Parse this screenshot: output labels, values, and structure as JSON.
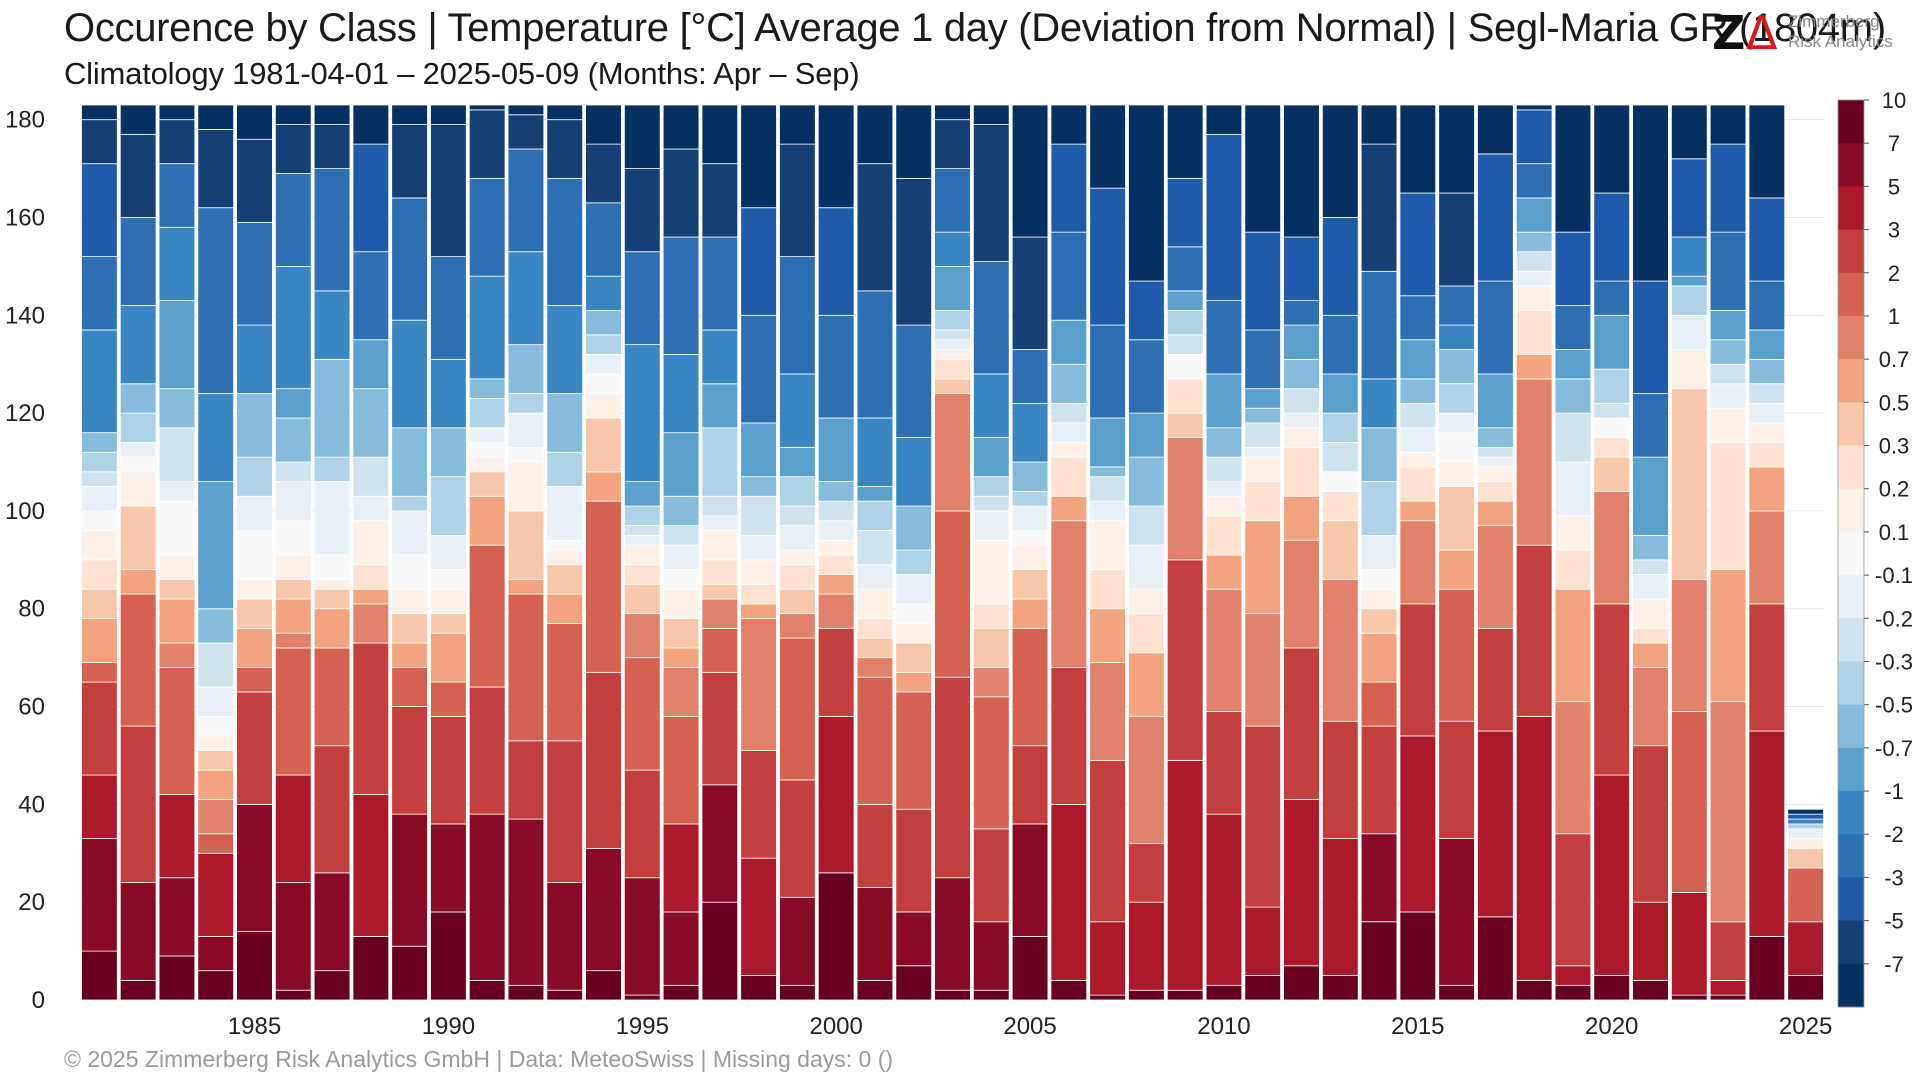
{
  "header": {
    "title": "Occurence by Class | Temperature [°C] Average 1 day (Deviation from Normal) | Segl-Maria  GR (1804m)",
    "subtitle": "Climatology 1981-04-01 – 2025-05-09 (Months: Apr – Sep)"
  },
  "logo": {
    "mark": "Z",
    "line1": "Zimmerberg",
    "line2": "Risk Analytics"
  },
  "footer": {
    "text": "©  2025 Zimmerberg Risk Analytics GmbH | Data: MeteoSwiss | Missing days: 0 ()"
  },
  "colors": {
    "classes": [
      "#053061",
      "#163f75",
      "#1f5ba8",
      "#2c6fb3",
      "#3a86c0",
      "#5aa0cd",
      "#86bcdb",
      "#aed2e6",
      "#cfe3ef",
      "#e7f0f6",
      "#f8f8f8",
      "#fdf0e8",
      "#fde2d2",
      "#f8c6a8",
      "#f1a47e",
      "#e2816a",
      "#d36350",
      "#c33f3d",
      "#aa1a2c",
      "#870a26",
      "#67001f"
    ],
    "grid": "#e6e6e6",
    "separator": "#ffffff"
  },
  "chart_data": {
    "type": "bar",
    "stacked": true,
    "ylim": [
      0,
      183
    ],
    "yticks": [
      0,
      20,
      40,
      60,
      80,
      100,
      120,
      140,
      160,
      180
    ],
    "xticks": [
      1985,
      1990,
      1995,
      2000,
      2005,
      2010,
      2015,
      2020,
      2025
    ],
    "grid": true,
    "legend": "colorbar-right",
    "class_labels": [
      "-7",
      "-5",
      "-3",
      "-2",
      "-1",
      "-0.7",
      "-0.5",
      "-0.3",
      "-0.2",
      "-0.1",
      "0.1",
      "0.2",
      "0.3",
      "0.5",
      "0.7",
      "1",
      "2",
      "3",
      "5",
      "7",
      "10"
    ],
    "class_order": "warmest class at bottom of each bar, coldest at top",
    "years": [
      1981,
      1982,
      1983,
      1984,
      1985,
      1986,
      1987,
      1988,
      1989,
      1990,
      1991,
      1992,
      1993,
      1994,
      1995,
      1996,
      1997,
      1998,
      1999,
      2000,
      2001,
      2002,
      2003,
      2004,
      2005,
      2006,
      2007,
      2008,
      2009,
      2010,
      2011,
      2012,
      2013,
      2014,
      2015,
      2016,
      2017,
      2018,
      2019,
      2020,
      2021,
      2022,
      2023,
      2024,
      2025
    ],
    "boundaries": [
      [
        10,
        33,
        46,
        65,
        69,
        78,
        84,
        90,
        96,
        100,
        105,
        108,
        112,
        116,
        137,
        152,
        171,
        180,
        183
      ],
      [
        4,
        24,
        56,
        83,
        88,
        101,
        108,
        111,
        114,
        120,
        126,
        142,
        160,
        177,
        183
      ],
      [
        9,
        25,
        42,
        68,
        73,
        82,
        86,
        91,
        102,
        106,
        117,
        125,
        143,
        158,
        171,
        180,
        183
      ],
      [
        6,
        13,
        30,
        34,
        41,
        47,
        51,
        54,
        58,
        64,
        73,
        80,
        106,
        124,
        162,
        178,
        183
      ],
      [
        14,
        40,
        63,
        68,
        76,
        82,
        86,
        96,
        103,
        111,
        124,
        138,
        159,
        176,
        183
      ],
      [
        2,
        24,
        46,
        72,
        75,
        82,
        86,
        91,
        98,
        106,
        110,
        119,
        125,
        150,
        169,
        179,
        183
      ],
      [
        6,
        26,
        52,
        72,
        80,
        84,
        86,
        91,
        106,
        111,
        131,
        145,
        170,
        179,
        183
      ],
      [
        13,
        42,
        73,
        81,
        84,
        89,
        98,
        103,
        111,
        125,
        135,
        153,
        175,
        183
      ],
      [
        11,
        38,
        60,
        68,
        73,
        79,
        84,
        91,
        100,
        103,
        117,
        139,
        164,
        179,
        183
      ],
      [
        18,
        36,
        58,
        65,
        75,
        79,
        84,
        88,
        95,
        107,
        117,
        131,
        152,
        179,
        183
      ],
      [
        4,
        38,
        64,
        93,
        103,
        108,
        111,
        114,
        117,
        123,
        127,
        148,
        168,
        182,
        183
      ],
      [
        3,
        37,
        53,
        83,
        86,
        100,
        110,
        113,
        120,
        124,
        134,
        153,
        174,
        181,
        183
      ],
      [
        2,
        24,
        53,
        77,
        83,
        89,
        92,
        94,
        105,
        112,
        124,
        142,
        168,
        180,
        183
      ],
      [
        6,
        31,
        67,
        102,
        108,
        119,
        124,
        128,
        132,
        136,
        141,
        148,
        163,
        175,
        183
      ],
      [
        1,
        25,
        47,
        70,
        79,
        85,
        89,
        93,
        95,
        97,
        101,
        106,
        134,
        153,
        170,
        183
      ],
      [
        3,
        18,
        36,
        58,
        68,
        72,
        78,
        84,
        88,
        93,
        97,
        103,
        116,
        132,
        156,
        174,
        183
      ],
      [
        20,
        44,
        67,
        76,
        82,
        85,
        90,
        96,
        99,
        103,
        117,
        126,
        137,
        156,
        171,
        183
      ],
      [
        5,
        29,
        51,
        78,
        81,
        85,
        90,
        95,
        103,
        107,
        118,
        140,
        162,
        183
      ],
      [
        3,
        21,
        45,
        74,
        79,
        84,
        89,
        92,
        97,
        101,
        107,
        113,
        128,
        152,
        175,
        183
      ],
      [
        26,
        58,
        76,
        83,
        87,
        91,
        94,
        98,
        102,
        106,
        119,
        140,
        162,
        183
      ],
      [
        4,
        23,
        40,
        66,
        70,
        74,
        78,
        84,
        89,
        96,
        102,
        105,
        119,
        145,
        171,
        183
      ],
      [
        7,
        18,
        39,
        63,
        67,
        73,
        77,
        81,
        87,
        92,
        101,
        115,
        138,
        168,
        183
      ],
      [
        2,
        25,
        66,
        100,
        124,
        127,
        131,
        133,
        135,
        137,
        141,
        150,
        157,
        170,
        180,
        183
      ],
      [
        2,
        16,
        35,
        62,
        68,
        76,
        81,
        94,
        100,
        103,
        107,
        115,
        128,
        151,
        179,
        183
      ],
      [
        13,
        36,
        52,
        76,
        82,
        88,
        93,
        96,
        101,
        104,
        110,
        122,
        133,
        156,
        183
      ],
      [
        4,
        40,
        68,
        98,
        103,
        111,
        114,
        118,
        122,
        130,
        139,
        157,
        175,
        183
      ],
      [
        1,
        16,
        49,
        69,
        80,
        88,
        98,
        102,
        107,
        109,
        119,
        138,
        166,
        183
      ],
      [
        2,
        20,
        32,
        58,
        71,
        79,
        84,
        93,
        101,
        111,
        120,
        135,
        147,
        183
      ],
      [
        2,
        49,
        90,
        115,
        120,
        127,
        132,
        136,
        141,
        145,
        154,
        168,
        183
      ],
      [
        3,
        38,
        59,
        84,
        91,
        99,
        103,
        106,
        111,
        117,
        128,
        143,
        177,
        183
      ],
      [
        5,
        19,
        56,
        79,
        98,
        106,
        111,
        113,
        118,
        121,
        125,
        137,
        157,
        183
      ],
      [
        7,
        41,
        72,
        94,
        103,
        113,
        117,
        120,
        125,
        131,
        138,
        143,
        156,
        183
      ],
      [
        5,
        33,
        57,
        86,
        98,
        104,
        108,
        114,
        120,
        128,
        140,
        160,
        183
      ],
      [
        16,
        34,
        56,
        65,
        75,
        80,
        84,
        88,
        95,
        106,
        117,
        127,
        149,
        175,
        183
      ],
      [
        18,
        54,
        81,
        98,
        102,
        109,
        112,
        117,
        122,
        127,
        135,
        144,
        165,
        183
      ],
      [
        3,
        33,
        57,
        84,
        92,
        105,
        110,
        116,
        120,
        126,
        133,
        138,
        146,
        165,
        183
      ],
      [
        17,
        55,
        76,
        97,
        102,
        106,
        109,
        111,
        113,
        117,
        128,
        147,
        173,
        183
      ],
      [
        4,
        58,
        93,
        127,
        132,
        141,
        146,
        149,
        153,
        157,
        164,
        171,
        182,
        183
      ],
      [
        3,
        7,
        34,
        61,
        84,
        92,
        99,
        110,
        120,
        127,
        133,
        142,
        157,
        183
      ],
      [
        5,
        46,
        81,
        104,
        111,
        115,
        119,
        122,
        129,
        140,
        147,
        165,
        183
      ],
      [
        4,
        20,
        52,
        68,
        73,
        76,
        82,
        87,
        90,
        95,
        111,
        124,
        147,
        183
      ],
      [
        1,
        22,
        59,
        86,
        125,
        133,
        140,
        146,
        148,
        156,
        172,
        183
      ],
      [
        1,
        4,
        16,
        61,
        88,
        114,
        121,
        126,
        130,
        135,
        141,
        157,
        175,
        183
      ],
      [
        13,
        55,
        81,
        100,
        109,
        114,
        118,
        122,
        126,
        131,
        137,
        147,
        164,
        183
      ],
      [
        5,
        16,
        27,
        31,
        33,
        35,
        36,
        37,
        38,
        39
      ]
    ]
  }
}
